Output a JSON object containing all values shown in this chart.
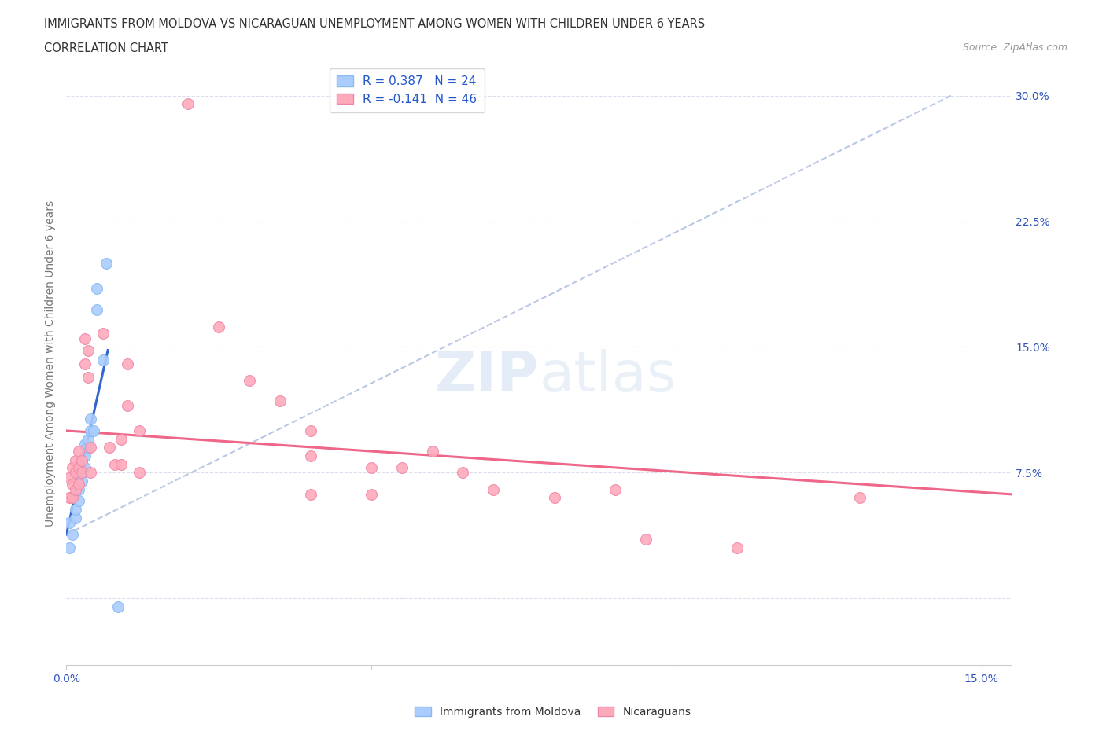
{
  "title_line1": "IMMIGRANTS FROM MOLDOVA VS NICARAGUAN UNEMPLOYMENT AMONG WOMEN WITH CHILDREN UNDER 6 YEARS",
  "title_line2": "CORRELATION CHART",
  "source_text": "Source: ZipAtlas.com",
  "ylabel": "Unemployment Among Women with Children Under 6 years",
  "xlim": [
    0.0,
    0.155
  ],
  "ylim": [
    -0.04,
    0.32
  ],
  "grid_color": "#ddddee",
  "background_color": "#ffffff",
  "title_color": "#333333",
  "axis_label_color": "#777777",
  "tick_color": "#3355bb",
  "blue_color": "#88bbee",
  "blue_fill": "#aaccff",
  "pink_color": "#ee88aa",
  "pink_fill": "#ffaabb",
  "blue_line_color": "#3366cc",
  "pink_line_color": "#ee6688",
  "gray_line_color": "#aabbdd",
  "blue_scatter": [
    [
      0.0005,
      0.03
    ],
    [
      0.0005,
      0.045
    ],
    [
      0.001,
      0.038
    ],
    [
      0.0015,
      0.048
    ],
    [
      0.0015,
      0.053
    ],
    [
      0.002,
      0.058
    ],
    [
      0.002,
      0.065
    ],
    [
      0.002,
      0.075
    ],
    [
      0.0025,
      0.07
    ],
    [
      0.0025,
      0.078
    ],
    [
      0.0025,
      0.082
    ],
    [
      0.003,
      0.078
    ],
    [
      0.003,
      0.085
    ],
    [
      0.003,
      0.092
    ],
    [
      0.0035,
      0.09
    ],
    [
      0.0035,
      0.095
    ],
    [
      0.004,
      0.1
    ],
    [
      0.004,
      0.107
    ],
    [
      0.0045,
      0.1
    ],
    [
      0.005,
      0.172
    ],
    [
      0.005,
      0.185
    ],
    [
      0.006,
      0.142
    ],
    [
      0.0065,
      0.2
    ],
    [
      0.0085,
      -0.005
    ]
  ],
  "pink_scatter": [
    [
      0.0005,
      0.072
    ],
    [
      0.0005,
      0.06
    ],
    [
      0.001,
      0.078
    ],
    [
      0.001,
      0.068
    ],
    [
      0.001,
      0.06
    ],
    [
      0.0015,
      0.082
    ],
    [
      0.0015,
      0.075
    ],
    [
      0.0015,
      0.065
    ],
    [
      0.002,
      0.088
    ],
    [
      0.002,
      0.078
    ],
    [
      0.002,
      0.068
    ],
    [
      0.0025,
      0.082
    ],
    [
      0.0025,
      0.075
    ],
    [
      0.003,
      0.155
    ],
    [
      0.003,
      0.14
    ],
    [
      0.0035,
      0.148
    ],
    [
      0.0035,
      0.132
    ],
    [
      0.004,
      0.09
    ],
    [
      0.004,
      0.075
    ],
    [
      0.006,
      0.158
    ],
    [
      0.007,
      0.09
    ],
    [
      0.008,
      0.08
    ],
    [
      0.009,
      0.095
    ],
    [
      0.009,
      0.08
    ],
    [
      0.01,
      0.14
    ],
    [
      0.01,
      0.115
    ],
    [
      0.012,
      0.1
    ],
    [
      0.012,
      0.075
    ],
    [
      0.02,
      0.295
    ],
    [
      0.025,
      0.162
    ],
    [
      0.03,
      0.13
    ],
    [
      0.035,
      0.118
    ],
    [
      0.04,
      0.1
    ],
    [
      0.04,
      0.085
    ],
    [
      0.04,
      0.062
    ],
    [
      0.05,
      0.078
    ],
    [
      0.05,
      0.062
    ],
    [
      0.055,
      0.078
    ],
    [
      0.06,
      0.088
    ],
    [
      0.065,
      0.075
    ],
    [
      0.07,
      0.065
    ],
    [
      0.08,
      0.06
    ],
    [
      0.09,
      0.065
    ],
    [
      0.095,
      0.035
    ],
    [
      0.11,
      0.03
    ],
    [
      0.13,
      0.06
    ]
  ],
  "blue_trendline_x": [
    0.0,
    0.0068
  ],
  "blue_trendline_y": [
    0.038,
    0.148
  ],
  "gray_trendline_x": [
    0.0,
    0.145
  ],
  "gray_trendline_y": [
    0.038,
    0.3
  ],
  "pink_trendline_x": [
    0.0,
    0.155
  ],
  "pink_trendline_y": [
    0.1,
    0.062
  ],
  "legend_color": "#2255cc",
  "legend_text1": "R = 0.387   N = 24",
  "legend_text2": "R = -0.141  N = 46"
}
